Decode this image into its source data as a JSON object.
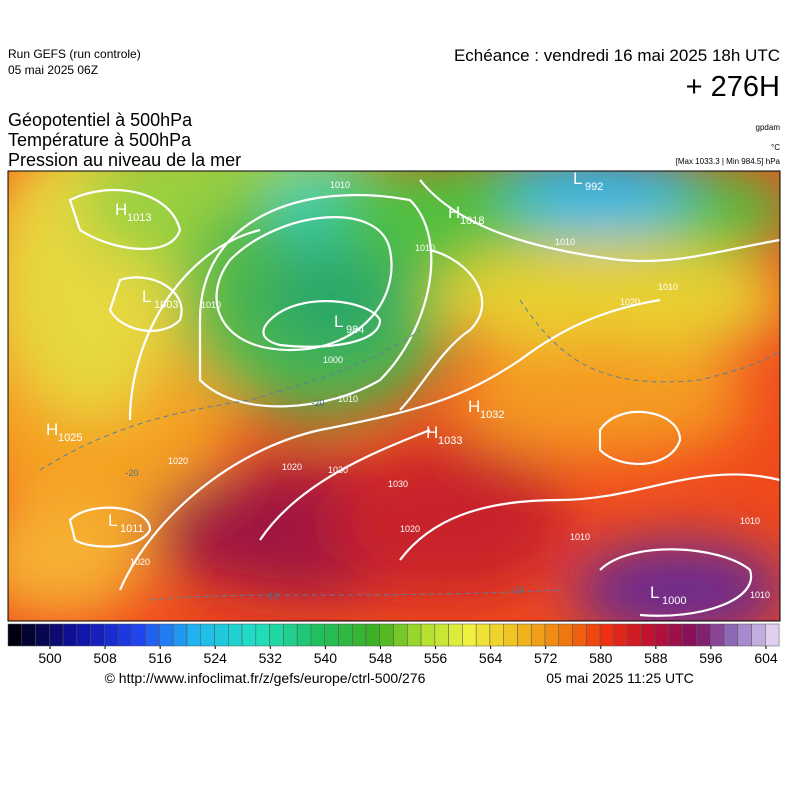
{
  "header": {
    "run": "Run GEFS (run controle)",
    "run_date": "05 mai 2025 06Z",
    "echeance": "Echéance : vendredi 16 mai 2025 18h UTC",
    "lead": "+ 276H"
  },
  "fields": [
    "Géopotentiel à 500hPa",
    "Température à 500hPa",
    "Pression au niveau de la mer"
  ],
  "units": [
    "gpdam",
    "°C",
    "[Max 1033.3 | Min 984.5] hPa"
  ],
  "centers": [
    {
      "letter": "H",
      "value": 1013
    },
    {
      "letter": "L",
      "value": 992
    },
    {
      "letter": "H",
      "value": 1018
    },
    {
      "letter": "L",
      "value": 1003
    },
    {
      "letter": "L",
      "value": 984
    },
    {
      "letter": "H",
      "value": 1025
    },
    {
      "letter": "H",
      "value": 1032
    },
    {
      "letter": "H",
      "value": 1033
    },
    {
      "letter": "L",
      "value": 1011
    },
    {
      "letter": "L",
      "value": 1000
    }
  ],
  "isobar_labels": [
    1010,
    1010,
    1010,
    1010,
    1020,
    1010,
    1000,
    1010,
    1020,
    1030,
    1030,
    1020,
    1020,
    1020,
    1010,
    1010,
    1010,
    -20,
    -20,
    -10,
    -10
  ],
  "colorbar_ticks": [
    500,
    508,
    516,
    524,
    532,
    540,
    548,
    556,
    564,
    572,
    580,
    588,
    596,
    604
  ],
  "footer": {
    "url": "© http://www.infoclimat.fr/z/gefs/europe/ctrl-500/276",
    "date": "05 mai 2025 11:25 UTC"
  }
}
